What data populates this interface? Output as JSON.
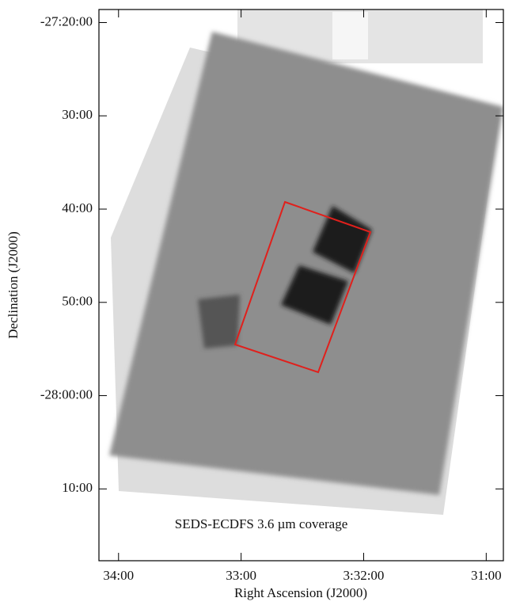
{
  "chart_data": {
    "type": "image",
    "annotation": "SEDS-ECDFS 3.6 µm coverage",
    "x_label": "Right Ascension (J2000)",
    "y_label": "Declination (J2000)",
    "xlim": [
      34.16,
      30.86
    ],
    "xticks": [
      {
        "value": 34,
        "label": "34:00"
      },
      {
        "value": 33,
        "label": "33:00"
      },
      {
        "value": 32,
        "label": "3:32:00"
      },
      {
        "value": 31,
        "label": "31:00"
      }
    ],
    "ylim": [
      -1697.7,
      -1638.6
    ],
    "yticks": [
      {
        "value": -1640,
        "label": "-27:20:00"
      },
      {
        "value": -1650,
        "label": "30:00"
      },
      {
        "value": -1660,
        "label": "40:00"
      },
      {
        "value": -1670,
        "label": "50:00"
      },
      {
        "value": -1680,
        "label": "-28:00:00"
      },
      {
        "value": -1690,
        "label": "10:00"
      }
    ],
    "region_color": "#e0201c"
  }
}
